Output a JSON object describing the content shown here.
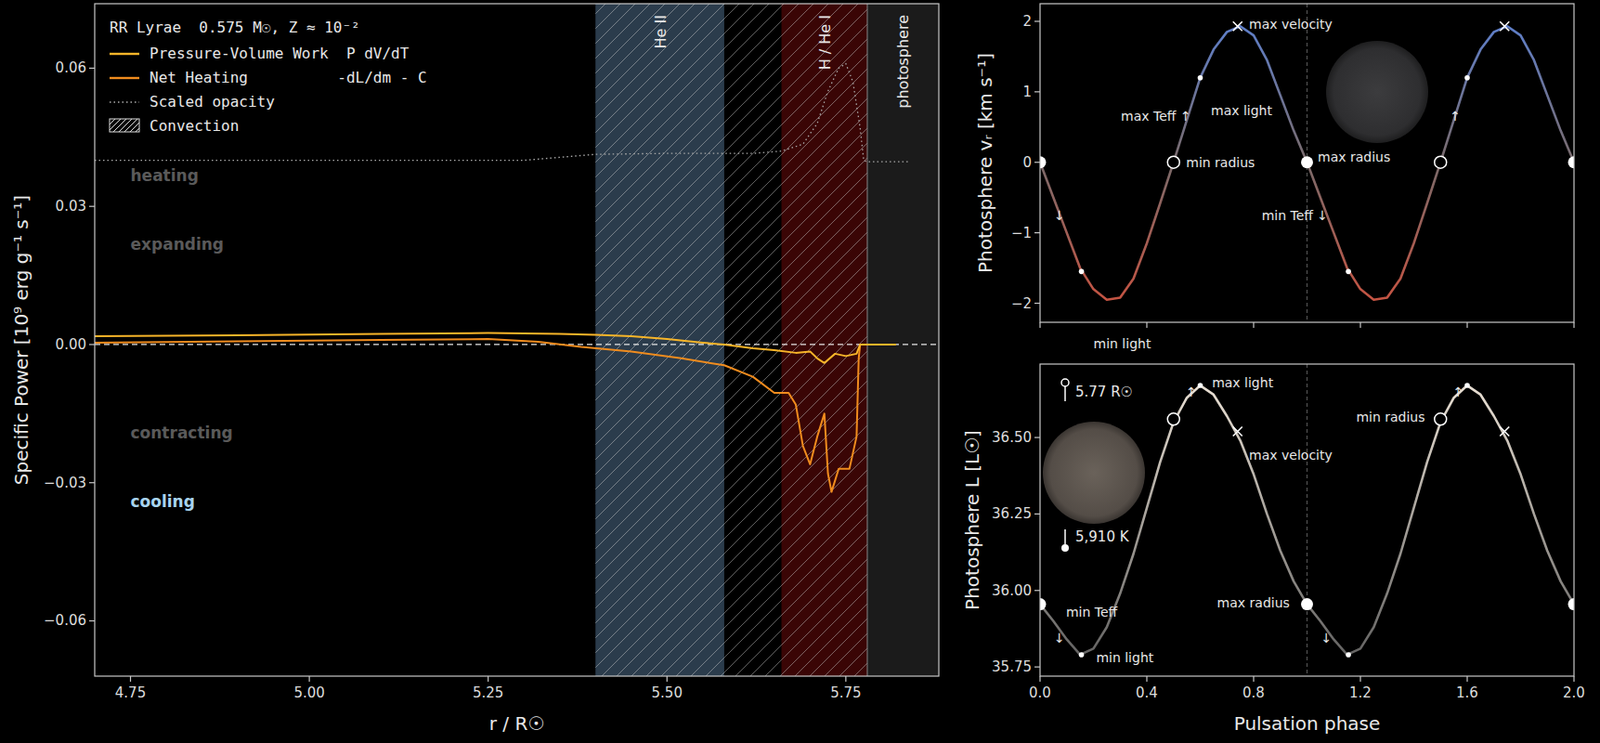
{
  "chart_data": [
    {
      "type": "line",
      "title": "RR Lyrae  0.575 M☉, Z ≈ 10⁻²",
      "x_label": "r / R☉",
      "y_label": "Specific Power [10⁹ erg g⁻¹ s⁻¹]",
      "xlim": [
        4.7,
        5.88
      ],
      "xticks": [
        4.75,
        {
          "value": 5,
          "label": "5.00"
        },
        5.25,
        {
          "value": 5.5,
          "label": "5.50"
        },
        5.75
      ],
      "ylim": [
        -0.072,
        0.074
      ],
      "yticks": [
        {
          "value": -0.06,
          "label": "−0.06"
        },
        {
          "value": -0.03,
          "label": "−0.03"
        },
        {
          "value": 0,
          "label": "0.00"
        },
        {
          "value": 0.03,
          "label": "0.03"
        },
        {
          "value": 0.06,
          "label": "0.06"
        }
      ],
      "hline": 0,
      "legend": "upper left",
      "series": [
        {
          "name": "Pressure-Volume Work  P dV/dT",
          "color": "#f7b529",
          "line_style": "solid",
          "x": [
            4.7,
            4.9,
            5.1,
            5.25,
            5.35,
            5.4,
            5.45,
            5.5,
            5.55,
            5.58,
            5.62,
            5.65,
            5.68,
            5.7,
            5.71,
            5.72,
            5.735,
            5.75,
            5.765,
            5.77,
            5.8,
            5.82
          ],
          "values": [
            0.0018,
            0.002,
            0.0023,
            0.0025,
            0.0023,
            0.0021,
            0.0018,
            0.0012,
            0.0004,
            0,
            -0.0008,
            -0.0012,
            -0.0018,
            -0.0015,
            -0.003,
            -0.004,
            -0.002,
            -0.0025,
            -0.002,
            0,
            0,
            0
          ]
        },
        {
          "name": "Net Heating          -dL/dm - C",
          "color": "#f08c1e",
          "line_style": "solid",
          "x": [
            4.7,
            4.9,
            5.1,
            5.25,
            5.32,
            5.38,
            5.45,
            5.52,
            5.58,
            5.62,
            5.65,
            5.67,
            5.68,
            5.69,
            5.7,
            5.71,
            5.72,
            5.725,
            5.73,
            5.74,
            5.755,
            5.765,
            5.768,
            5.77,
            5.8,
            5.82
          ],
          "values": [
            0.0004,
            0.0007,
            0.001,
            0.0012,
            0.0006,
            -0.0005,
            -0.0015,
            -0.003,
            -0.0045,
            -0.007,
            -0.0105,
            -0.0105,
            -0.013,
            -0.022,
            -0.026,
            -0.02,
            -0.015,
            -0.028,
            -0.032,
            -0.027,
            -0.027,
            -0.02,
            -0.003,
            0,
            0,
            0
          ]
        },
        {
          "name": "Scaled opacity",
          "color": "#aaaaaa",
          "line_style": "dotted",
          "x": [
            4.7,
            5.0,
            5.3,
            5.4,
            5.5,
            5.62,
            5.66,
            5.69,
            5.71,
            5.725,
            5.74,
            5.75,
            5.76,
            5.77,
            5.775,
            5.78,
            5.84
          ],
          "values": [
            0.04,
            0.04,
            0.04,
            0.0413,
            0.0415,
            0.0415,
            0.042,
            0.0435,
            0.048,
            0.055,
            0.06,
            0.061,
            0.057,
            0.047,
            0.04,
            0.0397,
            0.0397
          ]
        }
      ],
      "bands": [
        {
          "label": "He II",
          "x": [
            5.4,
            5.58
          ],
          "color": "#2b3c4c"
        },
        {
          "label": "H / He I",
          "x": [
            5.66,
            5.78
          ],
          "color": "#3a0505"
        },
        {
          "label": "photosphere",
          "x": [
            5.78,
            5.88
          ],
          "color": "#1b1b1b"
        }
      ],
      "convection": {
        "label": "Convection",
        "x": [
          5.4,
          5.78
        ]
      },
      "annotations": [
        {
          "text": "heating",
          "x": 4.75,
          "y": 0.0366,
          "color": "#5a5a5a"
        },
        {
          "text": "expanding",
          "x": 4.75,
          "y": 0.0218,
          "color": "#5a5a5a"
        },
        {
          "text": "contracting",
          "x": 4.75,
          "y": -0.0192,
          "color": "#5a5a5a"
        },
        {
          "text": "cooling",
          "x": 4.75,
          "y": -0.034,
          "color": "#a8d4ee"
        }
      ]
    },
    {
      "type": "line",
      "y_label": "Photosphere vᵣ [km s⁻¹]",
      "xlim": [
        0,
        2
      ],
      "xticks": [
        0,
        0.4,
        0.8,
        1.2,
        1.6,
        2
      ],
      "ylim": [
        -2.27,
        2.25
      ],
      "yticks": [
        {
          "value": -2,
          "label": "−2"
        },
        {
          "value": -1,
          "label": "−1"
        },
        0,
        1,
        2
      ],
      "tick_labels": "y",
      "vline": 1,
      "series": [
        {
          "colors": [
            "#5a82d8",
            "#7a6a6a",
            "#d0503c"
          ],
          "line_style": "solid",
          "x": [
            0,
            0.05,
            0.1,
            0.15,
            0.2,
            0.25,
            0.3,
            0.35,
            0.4,
            0.45,
            0.5,
            0.55,
            0.6,
            0.65,
            0.7,
            0.75,
            0.8,
            0.85,
            0.9,
            0.95,
            1,
            1.05,
            1.1,
            1.15,
            1.2,
            1.25,
            1.3,
            1.35,
            1.4,
            1.45,
            1.5,
            1.55,
            1.6,
            1.65,
            1.7,
            1.75,
            1.8,
            1.85,
            1.9,
            1.95,
            2
          ],
          "values": [
            0,
            -0.5,
            -1.0,
            -1.5,
            -1.8,
            -1.95,
            -1.92,
            -1.65,
            -1.15,
            -0.58,
            0,
            0.6,
            1.2,
            1.6,
            1.85,
            1.93,
            1.8,
            1.45,
            0.95,
            0.45,
            0,
            -0.5,
            -1.0,
            -1.5,
            -1.8,
            -1.95,
            -1.92,
            -1.65,
            -1.15,
            -0.58,
            0,
            0.6,
            1.2,
            1.6,
            1.85,
            1.93,
            1.8,
            1.45,
            0.95,
            0.45,
            0
          ]
        }
      ],
      "markers": [
        {
          "marker": "disc",
          "x": 0,
          "y": 0
        },
        {
          "marker": "ring",
          "x": 0.5,
          "y": 0
        },
        {
          "marker": "disc",
          "x": 1,
          "y": 0
        },
        {
          "marker": "ring",
          "x": 1.5,
          "y": 0
        },
        {
          "marker": "disc",
          "x": 2,
          "y": 0
        },
        {
          "marker": "x",
          "x": 0.74,
          "y": 1.93
        },
        {
          "marker": "x",
          "x": 1.74,
          "y": 1.93
        },
        {
          "marker": "dot",
          "x": 0.6,
          "y": 1.2
        },
        {
          "marker": "dot",
          "x": 1.6,
          "y": 1.2
        },
        {
          "marker": "dot",
          "x": 0.155,
          "y": -1.55
        },
        {
          "marker": "dot",
          "x": 1.155,
          "y": -1.55
        }
      ],
      "annotations": [
        {
          "text": "max velocity",
          "x": 0.783,
          "y": 1.96
        },
        {
          "text": "max Teff ↑",
          "x": 0.303,
          "y": 0.66
        },
        {
          "text": "max light",
          "x": 0.64,
          "y": 0.73
        },
        {
          "text": "min radius",
          "x": 0.547,
          "y": 0
        },
        {
          "text": "max radius",
          "x": 1.04,
          "y": 0.07
        },
        {
          "text": "min Teff ↓",
          "x": 0.83,
          "y": -0.75
        },
        {
          "text": "↓",
          "x": 0.052,
          "y": -0.75
        },
        {
          "text": "↑",
          "x": 1.535,
          "y": 0.66
        },
        {
          "text": "min light",
          "x": 0.2,
          "y": -2.57
        }
      ]
    },
    {
      "type": "line",
      "x_label": "Pulsation phase",
      "y_label": "Photosphere L [L☉]",
      "xlim": [
        0,
        2
      ],
      "xticks": [
        {
          "value": 0,
          "label": "0.0"
        },
        0.4,
        0.8,
        1.2,
        1.6,
        {
          "value": 2,
          "label": "2.0"
        }
      ],
      "ylim": [
        35.72,
        36.74
      ],
      "yticks": [
        35.75,
        {
          "value": 36,
          "label": "36.00"
        },
        36.25,
        {
          "value": 36.5,
          "label": "36.50"
        }
      ],
      "vline": 1,
      "radius_label": "5.77 R☉",
      "temperature_label": "5,910 K",
      "series": [
        {
          "colors": [
            "#f3e9dc",
            "#5a5a5a"
          ],
          "line_style": "solid",
          "x": [
            0,
            0.05,
            0.1,
            0.15,
            0.2,
            0.25,
            0.3,
            0.35,
            0.4,
            0.45,
            0.5,
            0.55,
            0.6,
            0.65,
            0.7,
            0.75,
            0.8,
            0.85,
            0.9,
            0.95,
            1,
            1.05,
            1.1,
            1.15,
            1.2,
            1.25,
            1.3,
            1.35,
            1.4,
            1.45,
            1.5,
            1.55,
            1.6,
            1.65,
            1.7,
            1.75,
            1.8,
            1.85,
            1.9,
            1.95,
            2
          ],
          "values": [
            35.955,
            35.9,
            35.84,
            35.79,
            35.81,
            35.88,
            35.99,
            36.12,
            36.27,
            36.42,
            36.55,
            36.63,
            36.67,
            36.64,
            36.57,
            36.49,
            36.38,
            36.25,
            36.13,
            36.03,
            35.955,
            35.9,
            35.84,
            35.79,
            35.81,
            35.88,
            35.99,
            36.12,
            36.27,
            36.42,
            36.55,
            36.63,
            36.67,
            36.64,
            36.57,
            36.49,
            36.38,
            36.25,
            36.13,
            36.03,
            35.955
          ]
        }
      ],
      "markers": [
        {
          "marker": "disc",
          "x": 0,
          "y": 35.955
        },
        {
          "marker": "ring",
          "x": 0.5,
          "y": 36.56
        },
        {
          "marker": "disc",
          "x": 1,
          "y": 35.955
        },
        {
          "marker": "ring",
          "x": 1.5,
          "y": 36.56
        },
        {
          "marker": "disc",
          "x": 2,
          "y": 35.955
        },
        {
          "marker": "x",
          "x": 0.74,
          "y": 36.52
        },
        {
          "marker": "x",
          "x": 1.74,
          "y": 36.52
        },
        {
          "marker": "dot",
          "x": 0.6,
          "y": 36.67
        },
        {
          "marker": "dot",
          "x": 1.6,
          "y": 36.67
        },
        {
          "marker": "dot",
          "x": 0.155,
          "y": 35.79
        },
        {
          "marker": "dot",
          "x": 1.155,
          "y": 35.79
        }
      ],
      "annotations": [
        {
          "text": "max light",
          "x": 0.644,
          "y": 36.678
        },
        {
          "text": "max velocity",
          "x": 0.783,
          "y": 36.444
        },
        {
          "text": "min radius",
          "x": 1.184,
          "y": 36.566
        },
        {
          "text": "max radius",
          "x": 0.663,
          "y": 35.96
        },
        {
          "text": "min Teff",
          "x": 0.097,
          "y": 35.93
        },
        {
          "text": "↓",
          "x": 0.052,
          "y": 35.845
        },
        {
          "text": "↓",
          "x": 1.052,
          "y": 35.845
        },
        {
          "text": "↑",
          "x": 0.546,
          "y": 36.65
        },
        {
          "text": "↑",
          "x": 1.546,
          "y": 36.65
        },
        {
          "text": "min light",
          "x": 0.21,
          "y": 35.78
        }
      ]
    }
  ]
}
